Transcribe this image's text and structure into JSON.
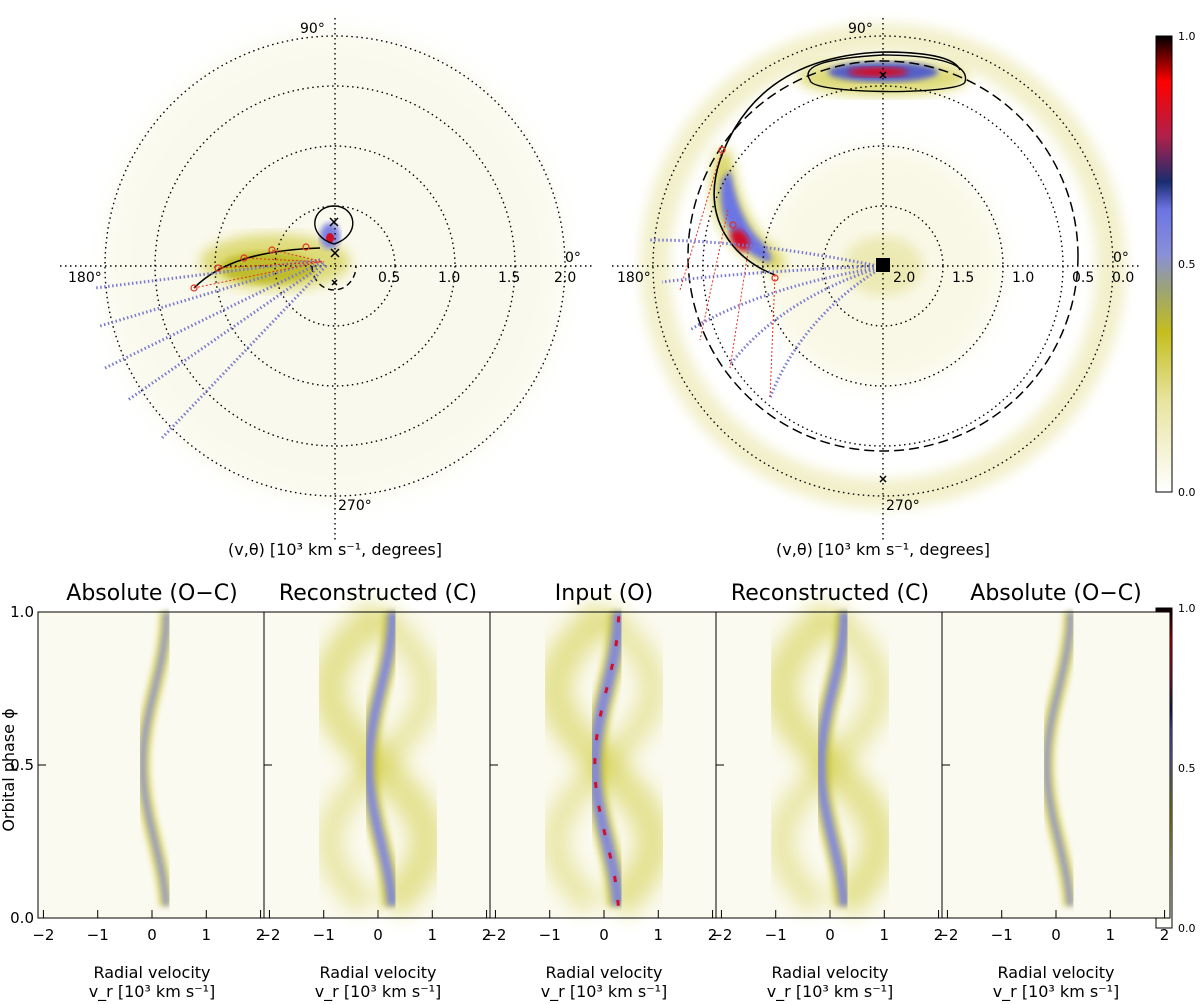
{
  "polar_maps": [
    {
      "id": "left",
      "xlabel": "(v,θ) [10³ km s⁻¹, degrees]",
      "angle_labels": [
        "90°",
        "180°",
        "0°",
        "270°"
      ],
      "ring_labels": [
        "0.5",
        "1.0",
        "1.5",
        "2.0"
      ]
    },
    {
      "id": "right",
      "xlabel": "(v,θ) [10³ km s⁻¹, degrees]",
      "angle_labels": [
        "90°",
        "180°",
        "0°",
        "270°"
      ],
      "ring_labels": [
        "2.0",
        "1.5",
        "1.0",
        "0.5",
        "0.0"
      ]
    }
  ],
  "trail_panels": [
    {
      "title": "Absolute (O−C)",
      "kind": "residual"
    },
    {
      "title": "Reconstructed (C)",
      "kind": "model"
    },
    {
      "title": "Input (O)",
      "kind": "data"
    },
    {
      "title": "Reconstructed (C)",
      "kind": "model"
    },
    {
      "title": "Absolute (O−C)",
      "kind": "residual"
    }
  ],
  "trail_axes": {
    "ylabel": "Orbital phase ϕ",
    "xlabel_line1": "Radial velocity",
    "xlabel_line2": "v_r [10³ km s⁻¹]",
    "xticks": [
      "−2",
      "−1",
      "0",
      "1",
      "2"
    ],
    "yticks": [
      "0.0",
      "0.5",
      "1.0"
    ]
  },
  "colorbars": [
    {
      "id": "top",
      "ticks": [
        "1.0",
        "0.5",
        "0.0"
      ]
    },
    {
      "id": "bottom",
      "ticks": [
        "1.0",
        "0.5",
        "0.0"
      ]
    }
  ],
  "chart_data": {
    "type": "heatmap",
    "xrange": [
      -2.1,
      2.1
    ],
    "yrange": [
      0.0,
      1.0
    ],
    "colorscale_range": [
      0.0,
      1.0
    ],
    "colors": {
      "low": "#ffffff",
      "mid_low": "#c8c31e",
      "mid": "#7c82e0",
      "mid_high": "#1c2e6e",
      "high": "#ff0000",
      "top": "#000000"
    }
  }
}
